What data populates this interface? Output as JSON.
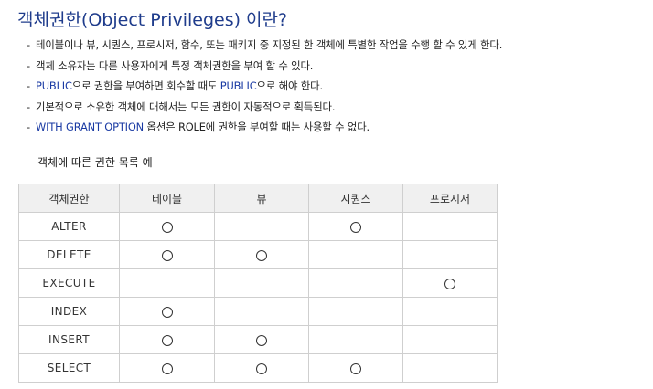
{
  "title": "객체권한(Object Privileges) 이란?",
  "bullets": [
    {
      "dash": "-",
      "parts": [
        {
          "text": "테이블이나 뷰, 시퀀스, 프로시저, 함수, 또는 패키지 중 지정된 한 객체에 특별한 작업을 수행 할 수 있게 한다.",
          "highlight": false
        }
      ]
    },
    {
      "dash": "-",
      "parts": [
        {
          "text": "객체 소유자는 다른 사용자에게 특정 객체권한을 부여 할 수 있다.",
          "highlight": false
        }
      ]
    },
    {
      "dash": "-",
      "parts": [
        {
          "text": "PUBLIC",
          "highlight": true
        },
        {
          "text": "으로 권한을 부여하면 회수할 때도 ",
          "highlight": false
        },
        {
          "text": "PUBLIC",
          "highlight": true
        },
        {
          "text": "으로 해야 한다.",
          "highlight": false
        }
      ]
    },
    {
      "dash": "-",
      "parts": [
        {
          "text": "기본적으로 소유한 객체에 대해서는 모든 권한이 자동적으로 획득된다.",
          "highlight": false
        }
      ]
    },
    {
      "dash": "-",
      "parts": [
        {
          "text": "WITH GRANT OPTION",
          "highlight": true
        },
        {
          "text": " 옵션은 ROLE에 권한을 부여할 때는 사용할 수 없다.",
          "highlight": false
        }
      ]
    }
  ],
  "subtitle": "객체에 따른 권한 목록 예",
  "table": {
    "headers": [
      "객체권한",
      "테이블",
      "뷰",
      "시퀀스",
      "프로시저"
    ],
    "mark_symbol": "○",
    "rows": [
      {
        "privilege": "ALTER",
        "marks": [
          true,
          false,
          true,
          false
        ]
      },
      {
        "privilege": "DELETE",
        "marks": [
          true,
          true,
          false,
          false
        ]
      },
      {
        "privilege": "EXECUTE",
        "marks": [
          false,
          false,
          false,
          true
        ]
      },
      {
        "privilege": "INDEX",
        "marks": [
          true,
          false,
          false,
          false
        ]
      },
      {
        "privilege": "INSERT",
        "marks": [
          true,
          true,
          false,
          false
        ]
      },
      {
        "privilege": "SELECT",
        "marks": [
          true,
          true,
          true,
          false
        ]
      }
    ]
  },
  "colors": {
    "title": "#1f3c8c",
    "highlight": "#1a3aa3",
    "header_bg": "#f0f0f0",
    "border": "#cfcfcf"
  }
}
